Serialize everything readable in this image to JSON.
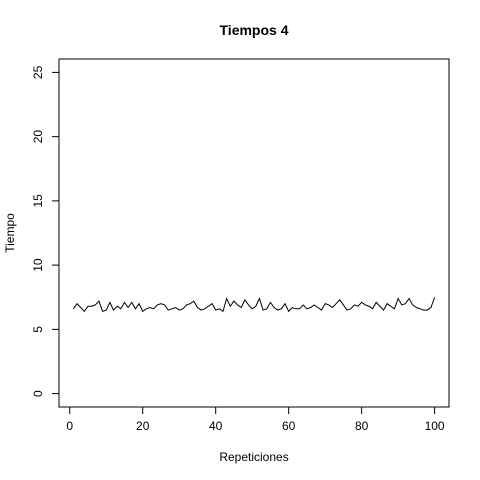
{
  "chart_data": {
    "type": "line",
    "title": "Tiempos 4",
    "xlabel": "Repeticiones",
    "ylabel": "Tiempo",
    "xlim": [
      1,
      100
    ],
    "ylim": [
      0,
      25
    ],
    "xticks": [
      0,
      20,
      40,
      60,
      80,
      100
    ],
    "yticks": [
      0,
      5,
      10,
      15,
      20,
      25
    ],
    "grid": false,
    "line_color": "#000000",
    "series": [
      {
        "x": [
          1,
          2,
          3,
          4,
          5,
          6,
          7,
          8,
          9,
          10,
          11,
          12,
          13,
          14,
          15,
          16,
          17,
          18,
          19,
          20,
          21,
          22,
          23,
          24,
          25,
          26,
          27,
          28,
          29,
          30,
          31,
          32,
          33,
          34,
          35,
          36,
          37,
          38,
          39,
          40,
          41,
          42,
          43,
          44,
          45,
          46,
          47,
          48,
          49,
          50,
          51,
          52,
          53,
          54,
          55,
          56,
          57,
          58,
          59,
          60,
          61,
          62,
          63,
          64,
          65,
          66,
          67,
          68,
          69,
          70,
          71,
          72,
          73,
          74,
          75,
          76,
          77,
          78,
          79,
          80,
          81,
          82,
          83,
          84,
          85,
          86,
          87,
          88,
          89,
          90,
          91,
          92,
          93,
          94,
          95,
          96,
          97,
          98,
          99,
          100
        ],
        "values": [
          6.6,
          7.0,
          6.7,
          6.4,
          6.8,
          6.8,
          6.9,
          7.2,
          6.4,
          6.5,
          7.1,
          6.5,
          6.8,
          6.6,
          7.1,
          6.7,
          7.1,
          6.6,
          7.0,
          6.4,
          6.6,
          6.7,
          6.6,
          6.9,
          7.0,
          6.9,
          6.5,
          6.6,
          6.7,
          6.5,
          6.6,
          6.9,
          7.0,
          7.2,
          6.7,
          6.5,
          6.6,
          6.8,
          7.0,
          6.5,
          6.6,
          6.4,
          7.4,
          6.8,
          7.2,
          6.9,
          6.7,
          7.3,
          6.9,
          6.6,
          6.8,
          7.4,
          6.5,
          6.6,
          7.1,
          6.7,
          6.5,
          6.6,
          7.0,
          6.4,
          6.7,
          6.6,
          6.6,
          6.9,
          6.6,
          6.7,
          6.9,
          6.7,
          6.5,
          7.0,
          6.9,
          6.7,
          7.0,
          7.3,
          6.9,
          6.5,
          6.6,
          6.9,
          6.8,
          7.1,
          6.9,
          6.8,
          6.6,
          7.1,
          6.8,
          6.5,
          7.0,
          6.8,
          6.6,
          7.4,
          6.9,
          7.0,
          7.4,
          6.9,
          6.7,
          6.6,
          6.5,
          6.5,
          6.7,
          7.5
        ]
      }
    ]
  }
}
